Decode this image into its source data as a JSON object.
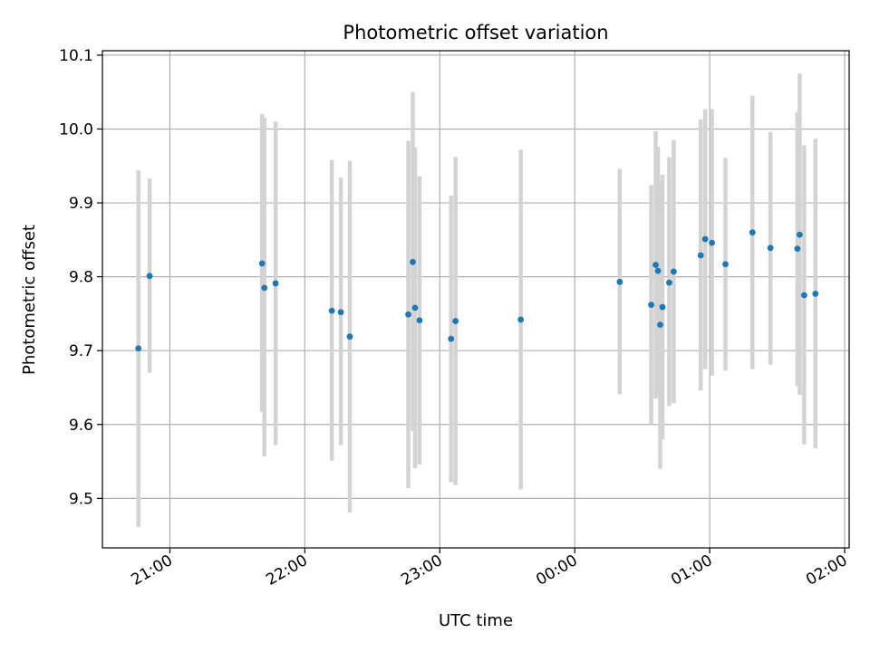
{
  "chart_data": {
    "type": "scatter",
    "title": "Photometric offset variation",
    "xlabel": "UTC time",
    "ylabel": "Photometric offset",
    "grid": true,
    "xlim": [
      "20:30",
      "26:02"
    ],
    "ylim": [
      9.433,
      10.106
    ],
    "xticks": [
      {
        "x": "21:00",
        "label": "21:00"
      },
      {
        "x": "22:00",
        "label": "22:00"
      },
      {
        "x": "23:00",
        "label": "23:00"
      },
      {
        "x": "24:00",
        "label": "00:00"
      },
      {
        "x": "25:00",
        "label": "01:00"
      },
      {
        "x": "26:00",
        "label": "02:00"
      }
    ],
    "yticks": [
      9.5,
      9.6,
      9.7,
      9.8,
      9.9,
      10.0,
      10.1
    ],
    "ytick_labels": [
      "9.5",
      "9.6",
      "9.7",
      "9.8",
      "9.9",
      "10.0",
      "10.1"
    ],
    "point_color": "#1f77b4",
    "errorbar_color": "#d3d3d3",
    "points": [
      {
        "x": "20:46",
        "y": 9.703,
        "ylo": 9.461,
        "yhi": 9.944
      },
      {
        "x": "20:51",
        "y": 9.801,
        "ylo": 9.67,
        "yhi": 9.933
      },
      {
        "x": "21:41",
        "y": 9.818,
        "ylo": 9.617,
        "yhi": 10.02
      },
      {
        "x": "21:42",
        "y": 9.785,
        "ylo": 9.557,
        "yhi": 10.015
      },
      {
        "x": "21:47",
        "y": 9.791,
        "ylo": 9.572,
        "yhi": 10.01
      },
      {
        "x": "22:12",
        "y": 9.754,
        "ylo": 9.551,
        "yhi": 9.958
      },
      {
        "x": "22:16",
        "y": 9.752,
        "ylo": 9.572,
        "yhi": 9.934
      },
      {
        "x": "22:20",
        "y": 9.719,
        "ylo": 9.481,
        "yhi": 9.957
      },
      {
        "x": "22:46",
        "y": 9.749,
        "ylo": 9.514,
        "yhi": 9.984
      },
      {
        "x": "22:48",
        "y": 9.82,
        "ylo": 9.591,
        "yhi": 10.05
      },
      {
        "x": "22:49",
        "y": 9.758,
        "ylo": 9.541,
        "yhi": 9.975
      },
      {
        "x": "22:51",
        "y": 9.741,
        "ylo": 9.546,
        "yhi": 9.936
      },
      {
        "x": "23:05",
        "y": 9.716,
        "ylo": 9.522,
        "yhi": 9.91
      },
      {
        "x": "23:07",
        "y": 9.74,
        "ylo": 9.518,
        "yhi": 9.962
      },
      {
        "x": "23:36",
        "y": 9.742,
        "ylo": 9.512,
        "yhi": 9.972
      },
      {
        "x": "24:20",
        "y": 9.793,
        "ylo": 9.641,
        "yhi": 9.946
      },
      {
        "x": "24:34",
        "y": 9.762,
        "ylo": 9.6,
        "yhi": 9.924
      },
      {
        "x": "24:36",
        "y": 9.816,
        "ylo": 9.635,
        "yhi": 9.997
      },
      {
        "x": "24:37",
        "y": 9.808,
        "ylo": 9.64,
        "yhi": 9.976
      },
      {
        "x": "24:38",
        "y": 9.735,
        "ylo": 9.54,
        "yhi": 9.93
      },
      {
        "x": "24:39",
        "y": 9.759,
        "ylo": 9.58,
        "yhi": 9.938
      },
      {
        "x": "24:42",
        "y": 9.792,
        "ylo": 9.625,
        "yhi": 9.962
      },
      {
        "x": "24:44",
        "y": 9.807,
        "ylo": 9.629,
        "yhi": 9.985
      },
      {
        "x": "24:56",
        "y": 9.829,
        "ylo": 9.646,
        "yhi": 10.013
      },
      {
        "x": "24:58",
        "y": 9.851,
        "ylo": 9.675,
        "yhi": 10.027
      },
      {
        "x": "25:01",
        "y": 9.846,
        "ylo": 9.666,
        "yhi": 10.027
      },
      {
        "x": "25:07",
        "y": 9.817,
        "ylo": 9.673,
        "yhi": 9.961
      },
      {
        "x": "25:19",
        "y": 9.86,
        "ylo": 9.675,
        "yhi": 10.045
      },
      {
        "x": "25:27",
        "y": 9.839,
        "ylo": 9.681,
        "yhi": 9.996
      },
      {
        "x": "25:39",
        "y": 9.838,
        "ylo": 9.652,
        "yhi": 10.023
      },
      {
        "x": "25:40",
        "y": 9.857,
        "ylo": 9.64,
        "yhi": 10.075
      },
      {
        "x": "25:42",
        "y": 9.775,
        "ylo": 9.573,
        "yhi": 9.978
      },
      {
        "x": "25:47",
        "y": 9.777,
        "ylo": 9.568,
        "yhi": 9.987
      }
    ]
  }
}
